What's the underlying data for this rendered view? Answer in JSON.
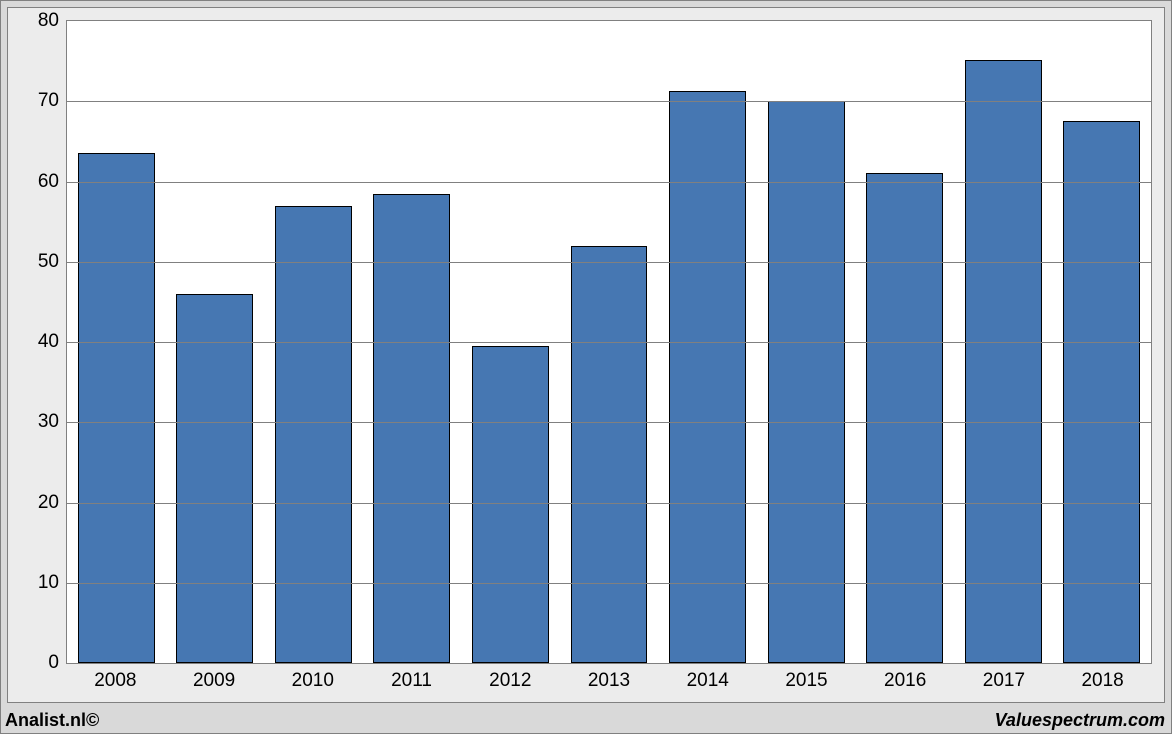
{
  "chart": {
    "type": "bar",
    "categories": [
      "2008",
      "2009",
      "2010",
      "2011",
      "2012",
      "2013",
      "2014",
      "2015",
      "2016",
      "2017",
      "2018"
    ],
    "values": [
      63.5,
      46.0,
      57.0,
      58.5,
      39.5,
      52.0,
      71.3,
      70.0,
      61.0,
      75.2,
      67.5
    ],
    "bar_color": "#4677b2",
    "bar_border_color": "#000000",
    "bar_width_ratio": 0.78,
    "ylim": [
      0,
      80
    ],
    "ytick_step": 10,
    "grid_color": "#808080",
    "plot_background": "#ffffff",
    "panel_background": "#ececec",
    "outer_background": "#d9d9d9",
    "border_color": "#808080",
    "tick_fontsize": 19,
    "tick_color": "#000000"
  },
  "footer": {
    "left": "Analist.nl©",
    "right": "Valuespectrum.com",
    "fontsize": 18,
    "color": "#000000"
  }
}
